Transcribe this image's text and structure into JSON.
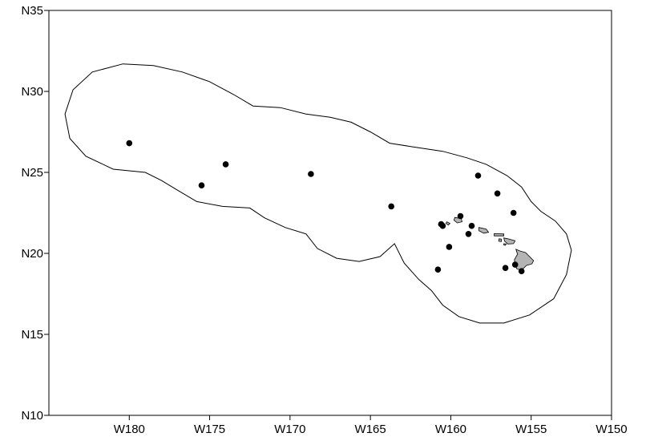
{
  "chart_data": {
    "type": "scatter",
    "title": "",
    "xlabel": "",
    "ylabel": "",
    "x_ticks": [
      "W180",
      "W175",
      "W170",
      "W165",
      "W160",
      "W155",
      "W150"
    ],
    "y_ticks": [
      "N35",
      "N30",
      "N25",
      "N20",
      "N15",
      "N10"
    ],
    "xlim_lon_east": [
      -185,
      -150
    ],
    "ylim_lat": [
      10,
      35
    ],
    "grid": false,
    "legend": "none",
    "colors": {
      "boundary": "#000000",
      "land": "#b4b4b4",
      "points": "#000000"
    },
    "points": [
      {
        "lon": -180.0,
        "lat": 26.8
      },
      {
        "lon": -175.5,
        "lat": 24.2
      },
      {
        "lon": -174.0,
        "lat": 25.5
      },
      {
        "lon": -168.7,
        "lat": 24.9
      },
      {
        "lon": -163.7,
        "lat": 22.9
      },
      {
        "lon": -158.3,
        "lat": 24.8
      },
      {
        "lon": -157.1,
        "lat": 23.7
      },
      {
        "lon": -156.1,
        "lat": 22.5
      },
      {
        "lon": -159.4,
        "lat": 22.3
      },
      {
        "lon": -160.6,
        "lat": 21.8
      },
      {
        "lon": -160.5,
        "lat": 21.7
      },
      {
        "lon": -158.7,
        "lat": 21.7
      },
      {
        "lon": -158.9,
        "lat": 21.2
      },
      {
        "lon": -160.1,
        "lat": 20.4
      },
      {
        "lon": -160.8,
        "lat": 19.0
      },
      {
        "lon": -156.6,
        "lat": 19.1
      },
      {
        "lon": -156.0,
        "lat": 19.3
      },
      {
        "lon": -155.6,
        "lat": 18.9
      }
    ],
    "boundary": [
      [
        -184.0,
        28.6
      ],
      [
        -183.5,
        30.1
      ],
      [
        -182.3,
        31.2
      ],
      [
        -180.4,
        31.7
      ],
      [
        -178.5,
        31.6
      ],
      [
        -176.7,
        31.2
      ],
      [
        -175.0,
        30.6
      ],
      [
        -173.5,
        29.8
      ],
      [
        -172.3,
        29.1
      ],
      [
        -170.6,
        29.0
      ],
      [
        -169.0,
        28.6
      ],
      [
        -167.5,
        28.4
      ],
      [
        -166.2,
        28.1
      ],
      [
        -165.0,
        27.5
      ],
      [
        -163.8,
        26.8
      ],
      [
        -162.5,
        26.6
      ],
      [
        -160.5,
        26.3
      ],
      [
        -159.0,
        25.9
      ],
      [
        -157.8,
        25.5
      ],
      [
        -156.5,
        24.8
      ],
      [
        -155.6,
        24.1
      ],
      [
        -155.0,
        23.2
      ],
      [
        -154.4,
        22.6
      ],
      [
        -153.5,
        22.0
      ],
      [
        -152.8,
        21.2
      ],
      [
        -152.5,
        20.2
      ],
      [
        -152.8,
        18.7
      ],
      [
        -153.6,
        17.2
      ],
      [
        -155.1,
        16.2
      ],
      [
        -156.7,
        15.7
      ],
      [
        -158.2,
        15.7
      ],
      [
        -159.5,
        16.1
      ],
      [
        -160.5,
        16.8
      ],
      [
        -161.2,
        17.7
      ],
      [
        -162.0,
        18.4
      ],
      [
        -162.9,
        19.4
      ],
      [
        -163.5,
        20.6
      ],
      [
        -164.4,
        19.8
      ],
      [
        -165.7,
        19.5
      ],
      [
        -167.1,
        19.7
      ],
      [
        -168.3,
        20.3
      ],
      [
        -169.0,
        21.2
      ],
      [
        -170.3,
        21.6
      ],
      [
        -171.6,
        22.2
      ],
      [
        -172.5,
        22.8
      ],
      [
        -174.2,
        22.9
      ],
      [
        -175.8,
        23.2
      ],
      [
        -177.0,
        23.9
      ],
      [
        -178.0,
        24.5
      ],
      [
        -179.0,
        25.0
      ],
      [
        -181.0,
        25.2
      ],
      [
        -182.7,
        26.0
      ],
      [
        -183.7,
        27.1
      ],
      [
        -184.0,
        28.6
      ]
    ],
    "islands": [
      {
        "name": "niihau",
        "outline": [
          [
            -160.25,
            21.95
          ],
          [
            -160.05,
            21.85
          ],
          [
            -160.15,
            21.75
          ],
          [
            -160.3,
            21.85
          ]
        ]
      },
      {
        "name": "kauai",
        "outline": [
          [
            -159.75,
            22.22
          ],
          [
            -159.35,
            22.15
          ],
          [
            -159.3,
            21.95
          ],
          [
            -159.6,
            21.88
          ],
          [
            -159.8,
            22.05
          ]
        ]
      },
      {
        "name": "oahu",
        "outline": [
          [
            -158.25,
            21.6
          ],
          [
            -157.8,
            21.5
          ],
          [
            -157.65,
            21.3
          ],
          [
            -157.95,
            21.25
          ],
          [
            -158.25,
            21.4
          ]
        ]
      },
      {
        "name": "molokai",
        "outline": [
          [
            -157.3,
            21.22
          ],
          [
            -156.7,
            21.2
          ],
          [
            -156.7,
            21.08
          ],
          [
            -157.3,
            21.08
          ]
        ]
      },
      {
        "name": "lanai",
        "outline": [
          [
            -157.0,
            20.9
          ],
          [
            -156.85,
            20.88
          ],
          [
            -156.85,
            20.73
          ],
          [
            -157.02,
            20.75
          ]
        ]
      },
      {
        "name": "maui",
        "outline": [
          [
            -156.7,
            20.95
          ],
          [
            -156.45,
            20.9
          ],
          [
            -156.0,
            20.78
          ],
          [
            -156.1,
            20.6
          ],
          [
            -156.45,
            20.58
          ],
          [
            -156.65,
            20.75
          ]
        ]
      },
      {
        "name": "kahoolawe",
        "outline": [
          [
            -156.7,
            20.6
          ],
          [
            -156.55,
            20.58
          ],
          [
            -156.6,
            20.5
          ],
          [
            -156.7,
            20.52
          ]
        ]
      },
      {
        "name": "hawaii",
        "outline": [
          [
            -155.95,
            20.25
          ],
          [
            -155.7,
            20.15
          ],
          [
            -155.35,
            20.05
          ],
          [
            -154.85,
            19.55
          ],
          [
            -154.95,
            19.35
          ],
          [
            -155.3,
            19.25
          ],
          [
            -155.6,
            18.95
          ],
          [
            -155.9,
            19.05
          ],
          [
            -156.05,
            19.6
          ],
          [
            -155.85,
            19.95
          ]
        ]
      }
    ]
  }
}
